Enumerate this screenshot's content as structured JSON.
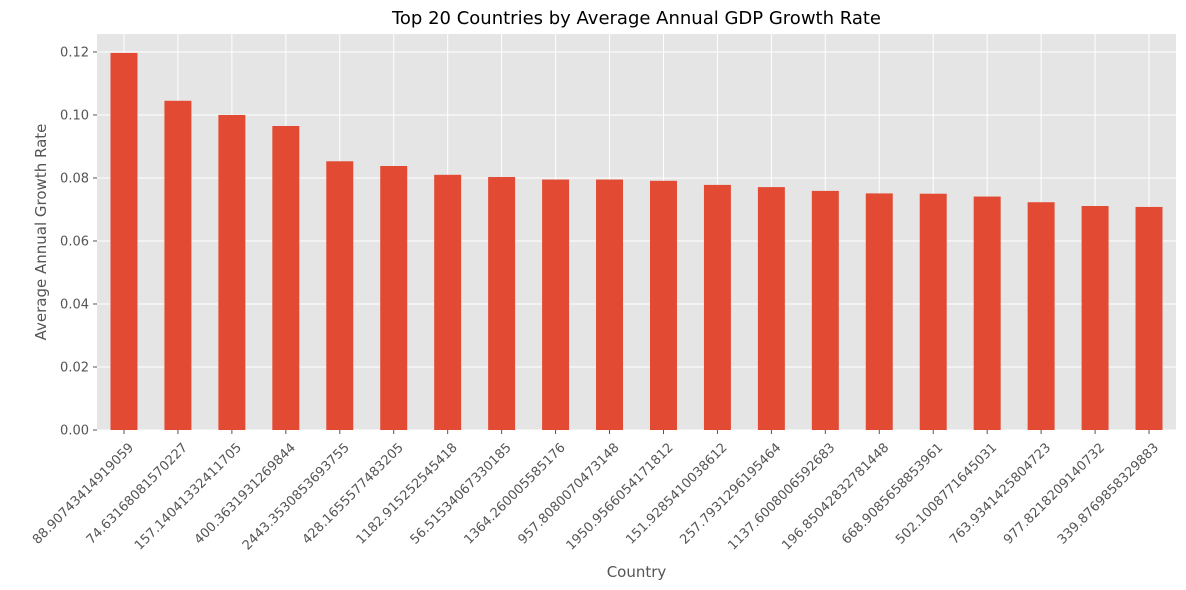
{
  "chart_data": {
    "type": "bar",
    "title": "Top 20 Countries by Average Annual GDP Growth Rate",
    "xlabel": "Country",
    "ylabel": "Average Annual Growth Rate",
    "categories": [
      "88.90743414919059",
      "74.63168081570227",
      "157.14041332411705",
      "400.3631931269844",
      "2443.3530853693755",
      "428.1655577483205",
      "1182.915252545418",
      "56.51534067330185",
      "1364.260005585176",
      "957.8080070473148",
      "1950.9566054171812",
      "151.9285410038612",
      "257.7931296195464",
      "1137.6008006592683",
      "196.85042832781448",
      "668.9085658853961",
      "502.1008771645031",
      "763.9341425804723",
      "977.8218209140732",
      "339.8769858329883"
    ],
    "values": [
      0.1197,
      0.1045,
      0.1,
      0.0965,
      0.0853,
      0.0838,
      0.081,
      0.0803,
      0.0795,
      0.0795,
      0.0791,
      0.0778,
      0.0771,
      0.0759,
      0.0751,
      0.075,
      0.0741,
      0.0723,
      0.0711,
      0.0708
    ],
    "yticks": [
      "0.00",
      "0.02",
      "0.04",
      "0.06",
      "0.08",
      "0.10",
      "0.12"
    ],
    "ylim": [
      0,
      0.1257
    ],
    "grid": true,
    "colors": {
      "bar": "#E24A33",
      "background": "#E5E5E5",
      "grid": "#FFFFFF",
      "text": "#555555",
      "title": "#000000"
    }
  }
}
